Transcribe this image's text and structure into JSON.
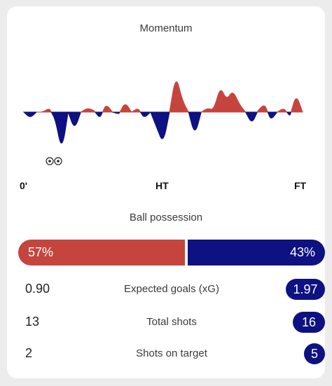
{
  "momentum": {
    "title": "Momentum",
    "timeline_labels": {
      "start": "0'",
      "half": "HT",
      "end": "FT"
    },
    "home_color": "#c5453e",
    "away_color": "#0d1181",
    "values": [
      0,
      -0.15,
      0,
      0,
      0.1,
      -0.2,
      -1.0,
      0,
      -0.45,
      0,
      0.1,
      0.05,
      -0.15,
      0.2,
      0,
      -0.05,
      0.25,
      0,
      0.1,
      -0.15,
      0,
      -0.4,
      -0.8,
      0,
      0.95,
      0.3,
      0,
      -0.6,
      0,
      0.1,
      0.05,
      0.65,
      0.3,
      0.55,
      0.2,
      0,
      -0.3,
      0.05,
      0.2,
      -0.2,
      0,
      0.1,
      -0.1,
      0.45,
      0
    ],
    "goal_markers": {
      "away": 2,
      "icon": "football-icon"
    }
  },
  "possession": {
    "title": "Ball possession",
    "home_pct": 57,
    "away_pct": 43,
    "home_label": "57%",
    "away_label": "43%"
  },
  "stats": [
    {
      "label": "Expected goals (xG)",
      "home": "0.90",
      "away": "1.97"
    },
    {
      "label": "Total shots",
      "home": "13",
      "away": "16"
    },
    {
      "label": "Shots on target",
      "home": "2",
      "away": "5"
    }
  ]
}
